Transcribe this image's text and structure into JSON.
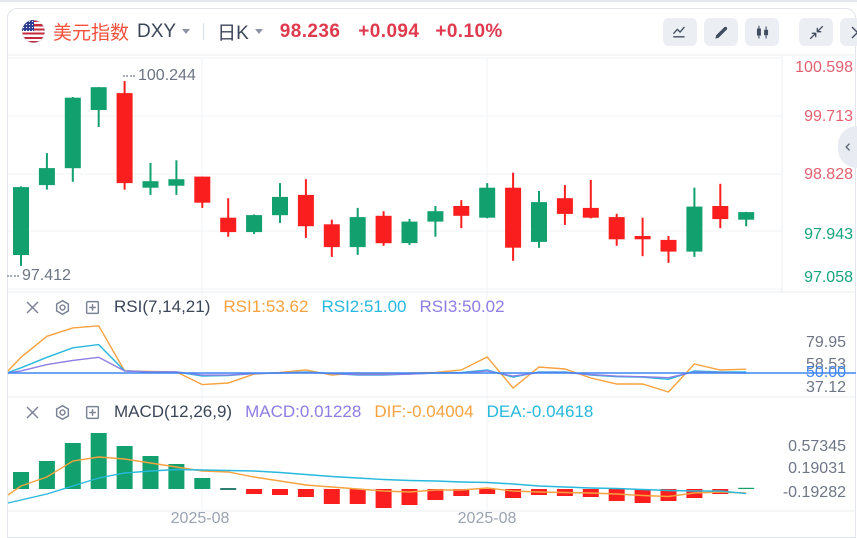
{
  "header": {
    "title": "美元指数",
    "symbol": "DXY",
    "interval": "日K",
    "last_price": "98.236",
    "change": "+0.094",
    "change_percent": "+0.10%"
  },
  "toolbar": {
    "buttons": [
      "line-chart-icon",
      "draw-icon",
      "candlestick-icon",
      "collapse-icon",
      "close-icon"
    ]
  },
  "colors": {
    "up": "#12a06e",
    "down": "#fb1e1e",
    "label_up": "#14a47e",
    "label_down": "#e25f70",
    "title_text": "#f4503c",
    "price_text": "#e03a4e",
    "rsi1": "#f7a23f",
    "rsi2": "#27b8dd",
    "rsi3": "#8f7ce4",
    "baseline": "#3d86f2",
    "dif": "#f7a23f",
    "dea": "#27b8dd",
    "macd_value": "#8f7ce4",
    "hist_zero": "#2e7d6e"
  },
  "chart_data": [
    {
      "type": "candlestick",
      "title": "美元指数 DXY 日K",
      "ylim": [
        97.058,
        100.598
      ],
      "y_axis_labels": [
        "100.598",
        "99.713",
        "98.828",
        "97.943",
        "97.058"
      ],
      "x_axis_labels": [
        "2025-08",
        "2025-08"
      ],
      "high_annotation": "100.244",
      "low_annotation": "97.412",
      "candles_ohlc": [
        [
          97.58,
          98.63,
          97.412,
          98.62
        ],
        [
          98.65,
          99.14,
          98.58,
          98.91
        ],
        [
          98.91,
          100.0,
          98.7,
          99.99
        ],
        [
          99.8,
          100.15,
          99.54,
          100.15
        ],
        [
          100.06,
          100.244,
          98.58,
          98.68
        ],
        [
          98.61,
          98.99,
          98.5,
          98.71
        ],
        [
          98.64,
          99.03,
          98.5,
          98.74
        ],
        [
          98.78,
          98.78,
          98.3,
          98.38
        ],
        [
          98.15,
          98.45,
          97.86,
          97.93
        ],
        [
          97.93,
          98.2,
          97.9,
          98.19
        ],
        [
          98.19,
          98.68,
          98.07,
          98.47
        ],
        [
          98.5,
          98.74,
          97.84,
          98.02
        ],
        [
          98.05,
          98.12,
          97.55,
          97.7
        ],
        [
          97.7,
          98.3,
          97.58,
          98.16
        ],
        [
          98.18,
          98.25,
          97.72,
          97.76
        ],
        [
          97.76,
          98.13,
          97.73,
          98.09
        ],
        [
          98.09,
          98.33,
          97.86,
          98.25
        ],
        [
          98.33,
          98.42,
          97.99,
          98.18
        ],
        [
          98.15,
          98.68,
          98.14,
          98.61
        ],
        [
          98.61,
          98.84,
          97.49,
          97.69
        ],
        [
          97.78,
          98.56,
          97.69,
          98.39
        ],
        [
          98.45,
          98.65,
          98.04,
          98.21
        ],
        [
          98.3,
          98.73,
          98.14,
          98.15
        ],
        [
          98.16,
          98.21,
          97.72,
          97.82
        ],
        [
          97.87,
          98.15,
          97.56,
          97.82
        ],
        [
          97.81,
          97.87,
          97.46,
          97.63
        ],
        [
          97.63,
          98.61,
          97.55,
          98.32
        ],
        [
          98.33,
          98.67,
          97.99,
          98.13
        ],
        [
          98.12,
          98.24,
          98.02,
          98.236
        ]
      ]
    },
    {
      "type": "line",
      "indicator": "RSI(7,14,21)",
      "legend": [
        {
          "label": "RSI1:53.62",
          "color": "#f7a23f"
        },
        {
          "label": "RSI2:51.00",
          "color": "#27b8dd"
        },
        {
          "label": "RSI3:50.02",
          "color": "#8f7ce4"
        }
      ],
      "y_axis_labels": [
        "79.95",
        "58.53",
        "50.00",
        "37.12"
      ],
      "baseline_value": 50,
      "series": [
        {
          "name": "RSI1",
          "left_edge": 52,
          "values": [
            65,
            85,
            93,
            95,
            52,
            51.5,
            51,
            39,
            40.5,
            49,
            50.5,
            53,
            48,
            50,
            49,
            50,
            50.5,
            52.9,
            65.2,
            35.7,
            55.7,
            53.8,
            45.2,
            39.5,
            39.5,
            31.9,
            58.6,
            52.9,
            53.62
          ]
        },
        {
          "name": "RSI2",
          "left_edge": 50.5,
          "values": [
            55,
            65,
            74,
            77,
            52,
            51,
            51,
            47,
            47.5,
            49.5,
            50,
            51,
            49.5,
            48,
            48,
            49,
            50,
            50.5,
            53,
            46,
            51,
            51,
            48,
            46.5,
            46,
            44,
            52,
            51,
            51.0
          ]
        },
        {
          "name": "RSI3",
          "left_edge": 50,
          "values": [
            52,
            58,
            62,
            65,
            52,
            51,
            51,
            48,
            48,
            49.5,
            50,
            50.5,
            49.5,
            48.5,
            48.5,
            49,
            50,
            50,
            52,
            47,
            50.5,
            50.5,
            48.5,
            47,
            46.5,
            45.5,
            51,
            50.5,
            50.02
          ]
        }
      ]
    },
    {
      "type": "macd",
      "indicator": "MACD(12,26,9)",
      "legend": [
        {
          "label": "MACD:0.01228",
          "color": "#8f7ce4"
        },
        {
          "label": "DIF:-0.04004",
          "color": "#f7a23f"
        },
        {
          "label": "DEA:-0.04618",
          "color": "#27b8dd"
        }
      ],
      "y_axis_labels": [
        "0.57345",
        "0.19031",
        "-0.19282"
      ],
      "histogram": [
        0.17,
        0.28,
        0.46,
        0.56,
        0.43,
        0.33,
        0.25,
        0.11,
        0.005,
        -0.05,
        -0.06,
        -0.08,
        -0.15,
        -0.15,
        -0.19,
        -0.16,
        -0.11,
        -0.07,
        -0.05,
        -0.09,
        -0.06,
        -0.07,
        -0.08,
        -0.12,
        -0.14,
        -0.12,
        -0.09,
        -0.05,
        0.012
      ],
      "dif_left_edge": -0.06,
      "dif": [
        0.03,
        0.12,
        0.28,
        0.32,
        0.3,
        0.26,
        0.22,
        0.18,
        0.17,
        0.12,
        0.08,
        0.04,
        0.02,
        0.0,
        -0.02,
        -0.03,
        -0.01,
        -0.01,
        0.01,
        -0.02,
        -0.03,
        -0.035,
        -0.04,
        -0.05,
        -0.065,
        -0.075,
        -0.04,
        -0.03,
        -0.04004
      ],
      "dea_left_edge": -0.14,
      "dea": [
        -0.11,
        -0.05,
        0.03,
        0.11,
        0.16,
        0.18,
        0.195,
        0.19,
        0.185,
        0.18,
        0.165,
        0.145,
        0.125,
        0.11,
        0.095,
        0.085,
        0.08,
        0.07,
        0.065,
        0.05,
        0.03,
        0.02,
        0.01,
        0.005,
        -0.005,
        -0.015,
        -0.02,
        -0.02,
        -0.04618
      ]
    }
  ]
}
